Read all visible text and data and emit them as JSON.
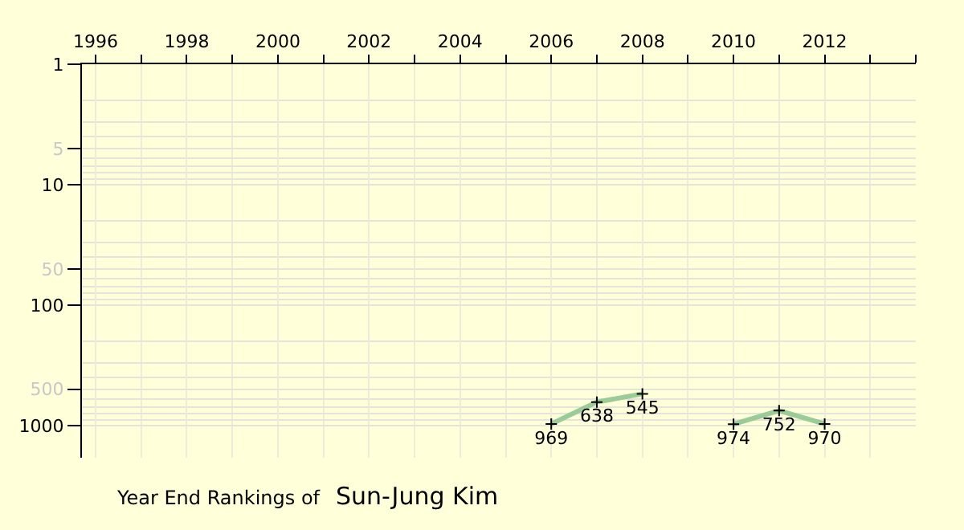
{
  "chart_data": {
    "type": "line",
    "title": "Year End Rankings of",
    "subtitle": "Sun-Jung Kim",
    "x": [
      2006,
      2007,
      2008,
      2009,
      2010,
      2011,
      2012
    ],
    "series": [
      {
        "color": "#99cc99",
        "values": [
          969,
          638,
          545,
          null,
          974,
          752,
          970
        ]
      }
    ],
    "xlim": [
      1995.7,
      2014
    ],
    "xticks": [
      1996,
      1998,
      2000,
      2002,
      2004,
      2006,
      2008,
      2010,
      2012
    ],
    "ylim": [
      1850,
      1
    ],
    "yticks": [
      1,
      5,
      10,
      50,
      100,
      500,
      1000
    ],
    "log": "y",
    "grid": true,
    "marker": "cross",
    "line_style": "solid",
    "data_labels": true
  }
}
